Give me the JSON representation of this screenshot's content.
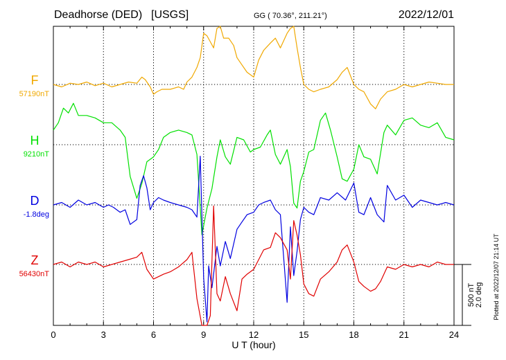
{
  "header": {
    "station": "Deadhorse (DED)",
    "source": "[USGS]",
    "coords": "GG ( 70.36°, 211.21°)",
    "date": "2022/12/01"
  },
  "footer": {
    "xlabel": "U T (hour)",
    "plotted": "Plotted at 2022/12/07 21:14 UT"
  },
  "scale_bar": {
    "line1": "500 nT",
    "line2": "2.0 deg"
  },
  "colors": {
    "F": "#f0a800",
    "H": "#00e000",
    "D": "#0000e0",
    "Z": "#e00000",
    "axis": "#000000",
    "grid": "#000000"
  },
  "chart_data": {
    "type": "line",
    "x_label": "U T (hour)",
    "xlim": [
      0,
      24
    ],
    "x_ticks": [
      0,
      3,
      6,
      9,
      12,
      15,
      18,
      21,
      24
    ],
    "grid": "dotted",
    "series": [
      {
        "key": "F",
        "name": "F",
        "baseline_label": "57190nT",
        "x": [
          0,
          0.5,
          1,
          1.5,
          2,
          2.5,
          3,
          3.5,
          4,
          4.5,
          5,
          5.3,
          5.5,
          5.8,
          6,
          6.2,
          6.5,
          7,
          7.5,
          7.8,
          8,
          8.3,
          8.6,
          8.8,
          9,
          9.2,
          9.4,
          9.6,
          9.8,
          10,
          10.2,
          10.5,
          10.8,
          11,
          11.3,
          11.6,
          12,
          12.3,
          12.6,
          13,
          13.3,
          13.6,
          14,
          14.2,
          14.4,
          14.6,
          14.8,
          15,
          15.3,
          15.6,
          16,
          16.5,
          17,
          17.3,
          17.6,
          18,
          18.3,
          18.6,
          19,
          19.3,
          19.6,
          20,
          20.5,
          21,
          21.5,
          22,
          22.5,
          23,
          23.5,
          24
        ],
        "values": [
          0,
          -20,
          10,
          0,
          20,
          -10,
          10,
          -20,
          0,
          20,
          10,
          60,
          40,
          -20,
          -80,
          -60,
          -40,
          -40,
          -20,
          -40,
          20,
          60,
          140,
          220,
          420,
          400,
          350,
          300,
          460,
          500,
          380,
          380,
          320,
          220,
          160,
          100,
          60,
          200,
          280,
          340,
          380,
          300,
          420,
          460,
          520,
          300,
          140,
          0,
          -40,
          -60,
          -40,
          -20,
          40,
          100,
          140,
          0,
          -40,
          -60,
          -160,
          -200,
          -120,
          -60,
          -40,
          0,
          -20,
          0,
          20,
          10,
          0,
          0
        ]
      },
      {
        "key": "H",
        "name": "H",
        "baseline_label": "9210nT",
        "x": [
          0,
          0.3,
          0.6,
          0.9,
          1.2,
          1.5,
          2,
          2.5,
          3,
          3.5,
          4,
          4.3,
          4.6,
          5,
          5.3,
          5.6,
          6,
          6.3,
          6.6,
          7,
          7.5,
          8,
          8.3,
          8.6,
          8.9,
          9.2,
          9.5,
          9.8,
          10,
          10.3,
          10.6,
          11,
          11.4,
          11.8,
          12,
          12.4,
          12.8,
          13,
          13.3,
          13.6,
          14,
          14.2,
          14.4,
          14.6,
          14.8,
          15,
          15.3,
          15.6,
          16,
          16.3,
          16.6,
          17,
          17.3,
          17.6,
          18,
          18.3,
          18.6,
          19,
          19.4,
          19.8,
          20,
          20.5,
          21,
          21.5,
          22,
          22.5,
          23,
          23.5,
          24
        ],
        "values": [
          120,
          180,
          300,
          260,
          340,
          240,
          240,
          220,
          180,
          180,
          120,
          60,
          -260,
          -440,
          -320,
          -140,
          -100,
          -40,
          60,
          100,
          120,
          100,
          80,
          -80,
          -740,
          -520,
          -360,
          -100,
          40,
          -100,
          -160,
          60,
          40,
          -60,
          -40,
          -20,
          80,
          120,
          -80,
          -160,
          -40,
          -180,
          -480,
          -520,
          -300,
          -220,
          -60,
          -40,
          200,
          260,
          120,
          -100,
          -280,
          -300,
          -200,
          0,
          -100,
          -120,
          -240,
          100,
          160,
          80,
          200,
          220,
          160,
          140,
          180,
          60,
          40
        ]
      },
      {
        "key": "D",
        "name": "D",
        "baseline_label": "-1.8deg",
        "x": [
          0,
          0.5,
          1,
          1.5,
          2,
          2.5,
          3,
          3.3,
          3.6,
          4,
          4.3,
          4.6,
          5,
          5.2,
          5.4,
          5.6,
          5.8,
          6,
          6.3,
          6.6,
          7,
          7.5,
          8,
          8.3,
          8.6,
          8.8,
          9,
          9.2,
          9.3,
          9.5,
          9.8,
          10,
          10.3,
          10.6,
          11,
          11.3,
          11.6,
          12,
          12.3,
          12.6,
          13,
          13.3,
          13.6,
          14,
          14.2,
          14.4,
          14.6,
          14.8,
          15,
          15.3,
          15.6,
          16,
          16.5,
          17,
          17.5,
          18,
          18.3,
          18.6,
          19,
          19.4,
          19.8,
          20,
          20.5,
          21,
          21.5,
          22,
          22.5,
          23,
          23.5,
          24
        ],
        "values": [
          0,
          20,
          -20,
          40,
          0,
          20,
          -20,
          0,
          -20,
          -60,
          -40,
          -160,
          -120,
          160,
          240,
          140,
          -40,
          20,
          60,
          40,
          20,
          0,
          -20,
          -40,
          -100,
          400,
          -600,
          -960,
          -500,
          -680,
          -340,
          -500,
          -300,
          -440,
          -200,
          -140,
          -80,
          -60,
          0,
          20,
          40,
          -40,
          -80,
          -800,
          -180,
          -580,
          -380,
          -120,
          -20,
          -60,
          -80,
          60,
          40,
          100,
          40,
          180,
          -60,
          -80,
          60,
          -80,
          -140,
          160,
          40,
          80,
          -20,
          40,
          20,
          0,
          20,
          0
        ]
      },
      {
        "key": "Z",
        "name": "Z",
        "baseline_label": "56430nT",
        "x": [
          0,
          0.5,
          1,
          1.5,
          2,
          2.5,
          3,
          3.5,
          4,
          4.5,
          5,
          5.3,
          5.6,
          6,
          6.3,
          6.6,
          7,
          7.5,
          8,
          8.3,
          8.6,
          8.9,
          9.2,
          9.4,
          9.6,
          9.8,
          10,
          10.3,
          10.6,
          11,
          11.3,
          11.6,
          12,
          12.3,
          12.6,
          13,
          13.3,
          13.6,
          14,
          14.2,
          14.4,
          14.6,
          14.8,
          15,
          15.3,
          15.6,
          16,
          16.5,
          17,
          17.3,
          17.6,
          18,
          18.3,
          18.6,
          19,
          19.3,
          19.6,
          20,
          20.5,
          21,
          21.5,
          22,
          22.5,
          23,
          23.5,
          24
        ],
        "values": [
          0,
          20,
          -20,
          20,
          0,
          20,
          -20,
          0,
          20,
          40,
          60,
          100,
          -40,
          -120,
          -100,
          -80,
          -60,
          -20,
          40,
          100,
          -280,
          -600,
          -760,
          -420,
          480,
          -240,
          -300,
          -100,
          -240,
          -380,
          -120,
          -80,
          -40,
          40,
          120,
          140,
          260,
          220,
          120,
          -120,
          360,
          240,
          80,
          -160,
          -240,
          -260,
          -120,
          -60,
          20,
          120,
          160,
          20,
          -140,
          -180,
          -220,
          -200,
          -140,
          -20,
          -40,
          0,
          -20,
          0,
          -20,
          20,
          0,
          0
        ]
      }
    ]
  }
}
